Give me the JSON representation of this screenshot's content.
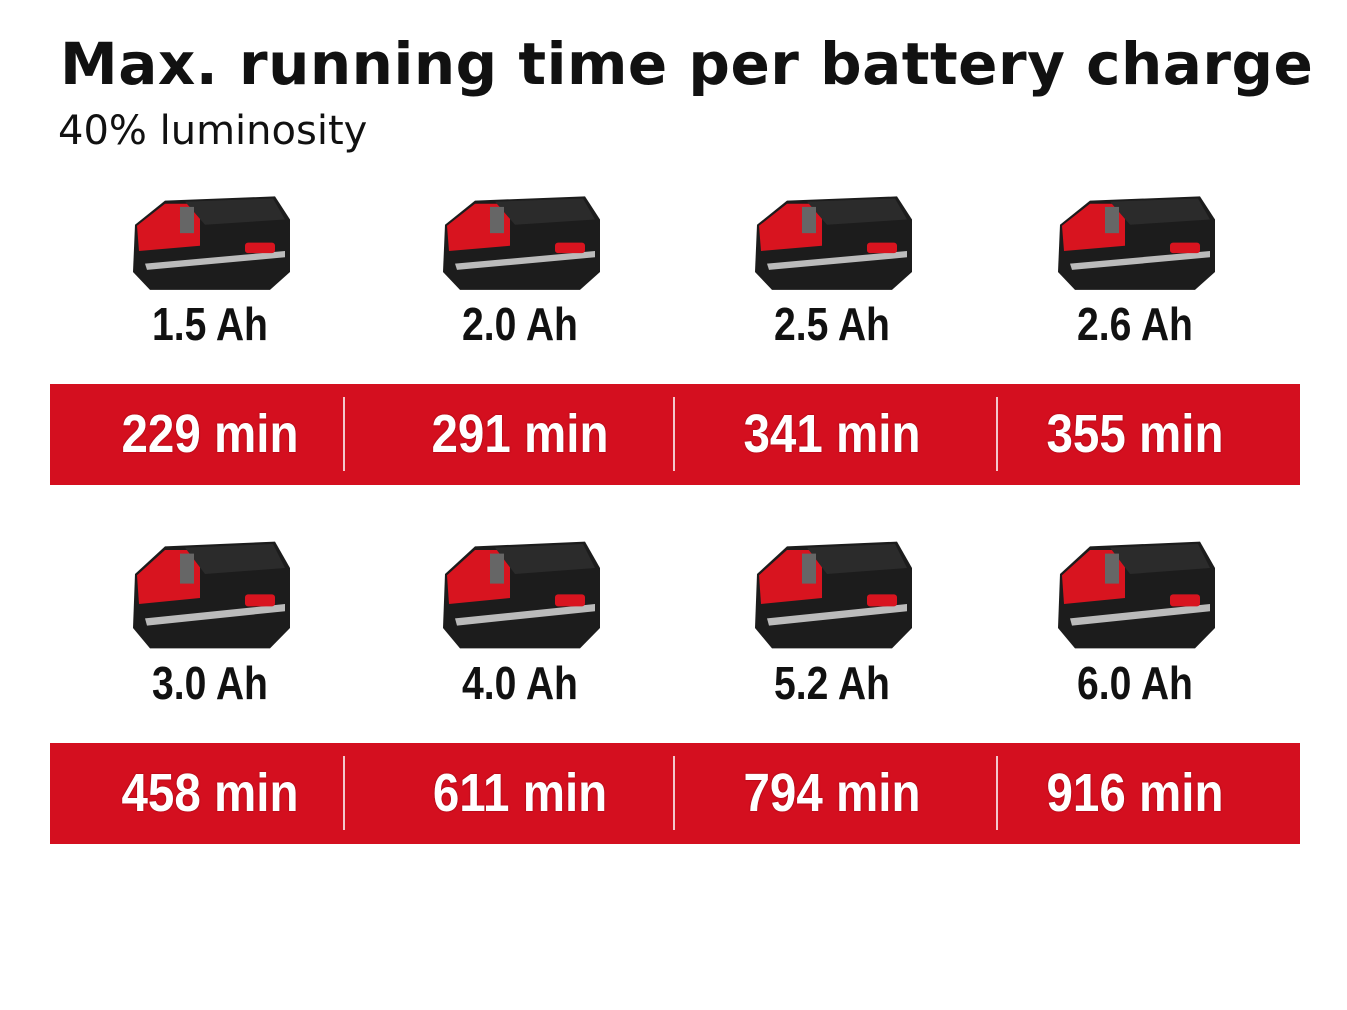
{
  "title": "Max. running time per battery charge",
  "subtitle": "40% luminosity",
  "colors": {
    "accent": "#d40f1f",
    "text": "#111111",
    "value_text": "#ffffff"
  },
  "rows": [
    {
      "batteries": [
        {
          "capacity": "1.5 Ah",
          "runtime": "229 min",
          "icon": "battery-pack-icon"
        },
        {
          "capacity": "2.0 Ah",
          "runtime": "291 min",
          "icon": "battery-pack-icon"
        },
        {
          "capacity": "2.5 Ah",
          "runtime": "341 min",
          "icon": "battery-pack-icon"
        },
        {
          "capacity": "2.6 Ah",
          "runtime": "355 min",
          "icon": "battery-pack-icon"
        }
      ]
    },
    {
      "batteries": [
        {
          "capacity": "3.0 Ah",
          "runtime": "458 min",
          "icon": "battery-pack-icon"
        },
        {
          "capacity": "4.0 Ah",
          "runtime": "611 min",
          "icon": "battery-pack-icon"
        },
        {
          "capacity": "5.2 Ah",
          "runtime": "794 min",
          "icon": "battery-pack-icon"
        },
        {
          "capacity": "6.0 Ah",
          "runtime": "916 min",
          "icon": "battery-pack-icon"
        }
      ]
    }
  ]
}
